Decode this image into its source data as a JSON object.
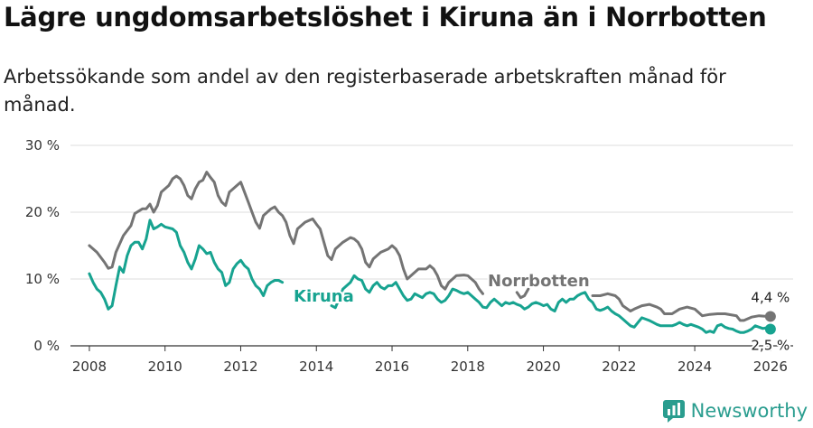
{
  "title": "Lägre ungdomsarbetslöshet i Kiruna än i Norrbotten",
  "subtitle": "Arbetssökande som andel av den registerbaserade arbetskraften månad för månad.",
  "brand": "Newsworthy",
  "colors": {
    "kiruna": "#17a390",
    "norrbotten": "#747474",
    "grid": "#dcdcdc",
    "axis": "#333333"
  },
  "chart_data": {
    "type": "line",
    "ylim": [
      0,
      30
    ],
    "xlim": [
      2007.5,
      2026.6
    ],
    "yticks": [
      0,
      10,
      20,
      30
    ],
    "ytick_labels": [
      "0 %",
      "10 %",
      "20 %",
      "30 %"
    ],
    "xticks": [
      2008,
      2010,
      2012,
      2014,
      2016,
      2018,
      2020,
      2022,
      2024,
      2026
    ],
    "xtick_labels": [
      "2008",
      "2010",
      "2012",
      "2014",
      "2016",
      "2018",
      "2020",
      "2022",
      "2024",
      "2026"
    ],
    "grid": true,
    "series": [
      {
        "name": "Norrbotten",
        "key": "norrbotten",
        "end_label": "4,4 %",
        "points": [
          [
            2008.0,
            15.0
          ],
          [
            2008.2,
            14.0
          ],
          [
            2008.4,
            12.5
          ],
          [
            2008.5,
            11.6
          ],
          [
            2008.6,
            11.8
          ],
          [
            2008.7,
            14.0
          ],
          [
            2008.9,
            16.5
          ],
          [
            2009.1,
            18.0
          ],
          [
            2009.2,
            19.8
          ],
          [
            2009.4,
            20.5
          ],
          [
            2009.5,
            20.5
          ],
          [
            2009.6,
            21.2
          ],
          [
            2009.7,
            20.0
          ],
          [
            2009.8,
            21.0
          ],
          [
            2009.9,
            23.0
          ],
          [
            2010.1,
            24.0
          ],
          [
            2010.2,
            25.0
          ],
          [
            2010.3,
            25.4
          ],
          [
            2010.4,
            25.0
          ],
          [
            2010.5,
            24.0
          ],
          [
            2010.6,
            22.5
          ],
          [
            2010.7,
            22.0
          ],
          [
            2010.8,
            23.5
          ],
          [
            2010.9,
            24.5
          ],
          [
            2011.0,
            24.8
          ],
          [
            2011.1,
            26.0
          ],
          [
            2011.2,
            25.2
          ],
          [
            2011.3,
            24.5
          ],
          [
            2011.4,
            22.5
          ],
          [
            2011.5,
            21.5
          ],
          [
            2011.6,
            21.0
          ],
          [
            2011.7,
            23.0
          ],
          [
            2011.9,
            24.0
          ],
          [
            2012.0,
            24.5
          ],
          [
            2012.1,
            23.0
          ],
          [
            2012.2,
            21.5
          ],
          [
            2012.3,
            20.0
          ],
          [
            2012.4,
            18.5
          ],
          [
            2012.5,
            17.6
          ],
          [
            2012.6,
            19.5
          ],
          [
            2012.8,
            20.5
          ],
          [
            2012.9,
            20.8
          ],
          [
            2013.0,
            20.0
          ],
          [
            2013.1,
            19.5
          ],
          [
            2013.2,
            18.5
          ],
          [
            2013.3,
            16.5
          ],
          [
            2013.4,
            15.3
          ],
          [
            2013.5,
            17.5
          ],
          [
            2013.7,
            18.5
          ],
          [
            2013.9,
            19.0
          ],
          [
            2014.0,
            18.2
          ],
          [
            2014.1,
            17.5
          ],
          [
            2014.2,
            15.5
          ],
          [
            2014.3,
            13.5
          ],
          [
            2014.4,
            12.9
          ],
          [
            2014.5,
            14.5
          ],
          [
            2014.7,
            15.5
          ],
          [
            2014.9,
            16.2
          ],
          [
            2015.0,
            16.0
          ],
          [
            2015.1,
            15.5
          ],
          [
            2015.2,
            14.5
          ],
          [
            2015.3,
            12.5
          ],
          [
            2015.4,
            11.8
          ],
          [
            2015.5,
            13.0
          ],
          [
            2015.7,
            14.0
          ],
          [
            2015.9,
            14.5
          ],
          [
            2016.0,
            15.0
          ],
          [
            2016.1,
            14.5
          ],
          [
            2016.2,
            13.5
          ],
          [
            2016.3,
            11.5
          ],
          [
            2016.4,
            10.0
          ],
          [
            2016.5,
            10.5
          ],
          [
            2016.7,
            11.5
          ],
          [
            2016.9,
            11.5
          ],
          [
            2017.0,
            12.0
          ],
          [
            2017.1,
            11.5
          ],
          [
            2017.2,
            10.5
          ],
          [
            2017.3,
            9.0
          ],
          [
            2017.4,
            8.5
          ],
          [
            2017.5,
            9.5
          ],
          [
            2017.7,
            10.5
          ],
          [
            2017.9,
            10.6
          ],
          [
            2018.0,
            10.5
          ],
          [
            2018.1,
            10.0
          ],
          [
            2018.2,
            9.5
          ],
          [
            2018.3,
            8.5
          ],
          [
            2018.4,
            7.8
          ]
        ],
        "points_after_label": [
          [
            2019.3,
            8.0
          ],
          [
            2019.4,
            7.2
          ],
          [
            2019.5,
            7.5
          ],
          [
            2019.6,
            8.5
          ]
        ],
        "points_tail": [
          [
            2021.3,
            7.5
          ],
          [
            2021.5,
            7.5
          ],
          [
            2021.7,
            7.8
          ],
          [
            2021.9,
            7.5
          ],
          [
            2022.0,
            7.0
          ],
          [
            2022.1,
            6.0
          ],
          [
            2022.3,
            5.2
          ],
          [
            2022.4,
            5.5
          ],
          [
            2022.6,
            6.0
          ],
          [
            2022.8,
            6.2
          ],
          [
            2023.0,
            5.8
          ],
          [
            2023.1,
            5.5
          ],
          [
            2023.2,
            4.8
          ],
          [
            2023.4,
            4.8
          ],
          [
            2023.6,
            5.5
          ],
          [
            2023.8,
            5.8
          ],
          [
            2024.0,
            5.5
          ],
          [
            2024.1,
            5.0
          ],
          [
            2024.2,
            4.5
          ],
          [
            2024.4,
            4.7
          ],
          [
            2024.6,
            4.8
          ],
          [
            2024.8,
            4.8
          ],
          [
            2025.0,
            4.6
          ],
          [
            2025.1,
            4.5
          ],
          [
            2025.2,
            3.8
          ],
          [
            2025.3,
            3.8
          ],
          [
            2025.5,
            4.3
          ],
          [
            2025.7,
            4.5
          ],
          [
            2025.9,
            4.4
          ],
          [
            2026.0,
            4.4
          ]
        ]
      },
      {
        "name": "Kiruna",
        "key": "kiruna",
        "end_label": "2,5 %",
        "points": [
          [
            2008.0,
            10.8
          ],
          [
            2008.1,
            9.5
          ],
          [
            2008.2,
            8.5
          ],
          [
            2008.3,
            8.0
          ],
          [
            2008.4,
            7.0
          ],
          [
            2008.5,
            5.5
          ],
          [
            2008.6,
            6.0
          ],
          [
            2008.7,
            9.0
          ],
          [
            2008.8,
            11.8
          ],
          [
            2008.9,
            11.0
          ],
          [
            2009.0,
            13.5
          ],
          [
            2009.1,
            15.0
          ],
          [
            2009.2,
            15.5
          ],
          [
            2009.3,
            15.5
          ],
          [
            2009.4,
            14.5
          ],
          [
            2009.5,
            16.0
          ],
          [
            2009.6,
            18.8
          ],
          [
            2009.7,
            17.5
          ],
          [
            2009.8,
            17.8
          ],
          [
            2009.9,
            18.2
          ],
          [
            2010.0,
            17.8
          ],
          [
            2010.2,
            17.5
          ],
          [
            2010.3,
            17.0
          ],
          [
            2010.4,
            15.0
          ],
          [
            2010.5,
            14.0
          ],
          [
            2010.6,
            12.5
          ],
          [
            2010.7,
            11.5
          ],
          [
            2010.8,
            13.0
          ],
          [
            2010.9,
            15.0
          ],
          [
            2011.0,
            14.5
          ],
          [
            2011.1,
            13.8
          ],
          [
            2011.2,
            14.0
          ],
          [
            2011.3,
            12.5
          ],
          [
            2011.4,
            11.5
          ],
          [
            2011.5,
            11.0
          ],
          [
            2011.6,
            9.0
          ],
          [
            2011.7,
            9.5
          ],
          [
            2011.8,
            11.5
          ],
          [
            2011.9,
            12.3
          ],
          [
            2012.0,
            12.8
          ],
          [
            2012.1,
            12.0
          ],
          [
            2012.2,
            11.5
          ],
          [
            2012.3,
            10.0
          ],
          [
            2012.4,
            9.0
          ],
          [
            2012.5,
            8.5
          ],
          [
            2012.6,
            7.5
          ],
          [
            2012.7,
            9.0
          ],
          [
            2012.8,
            9.5
          ],
          [
            2012.9,
            9.8
          ],
          [
            2013.0,
            9.8
          ],
          [
            2013.1,
            9.5
          ]
        ],
        "points_after_label": [
          [
            2014.4,
            6.0
          ],
          [
            2014.5,
            5.7
          ],
          [
            2014.6,
            7.0
          ],
          [
            2014.7,
            8.5
          ],
          [
            2014.8,
            9.0
          ],
          [
            2014.9,
            9.5
          ],
          [
            2015.0,
            10.5
          ],
          [
            2015.1,
            10.0
          ],
          [
            2015.2,
            9.8
          ],
          [
            2015.3,
            8.5
          ],
          [
            2015.4,
            8.0
          ],
          [
            2015.5,
            9.0
          ],
          [
            2015.6,
            9.5
          ],
          [
            2015.7,
            8.8
          ],
          [
            2015.8,
            8.5
          ],
          [
            2015.9,
            9.0
          ],
          [
            2016.0,
            9.0
          ],
          [
            2016.1,
            9.5
          ],
          [
            2016.2,
            8.5
          ],
          [
            2016.3,
            7.5
          ],
          [
            2016.4,
            6.8
          ],
          [
            2016.5,
            7.0
          ],
          [
            2016.6,
            7.8
          ],
          [
            2016.7,
            7.5
          ],
          [
            2016.8,
            7.2
          ],
          [
            2016.9,
            7.8
          ],
          [
            2017.0,
            8.0
          ],
          [
            2017.1,
            7.8
          ],
          [
            2017.2,
            7.0
          ],
          [
            2017.3,
            6.5
          ],
          [
            2017.4,
            6.8
          ],
          [
            2017.5,
            7.5
          ],
          [
            2017.6,
            8.5
          ],
          [
            2017.7,
            8.3
          ],
          [
            2017.8,
            8.0
          ],
          [
            2017.9,
            7.8
          ],
          [
            2018.0,
            8.0
          ],
          [
            2018.1,
            7.5
          ],
          [
            2018.2,
            7.0
          ],
          [
            2018.3,
            6.5
          ],
          [
            2018.4,
            5.8
          ],
          [
            2018.5,
            5.7
          ],
          [
            2018.6,
            6.5
          ],
          [
            2018.7,
            7.0
          ],
          [
            2018.8,
            6.5
          ],
          [
            2018.9,
            6.0
          ],
          [
            2019.0,
            6.5
          ],
          [
            2019.1,
            6.3
          ],
          [
            2019.2,
            6.5
          ],
          [
            2019.3,
            6.2
          ],
          [
            2019.4,
            6.0
          ],
          [
            2019.5,
            5.5
          ],
          [
            2019.6,
            5.8
          ],
          [
            2019.7,
            6.3
          ],
          [
            2019.8,
            6.5
          ],
          [
            2019.9,
            6.3
          ],
          [
            2020.0,
            6.0
          ],
          [
            2020.1,
            6.2
          ],
          [
            2020.2,
            5.5
          ],
          [
            2020.3,
            5.2
          ],
          [
            2020.4,
            6.5
          ],
          [
            2020.5,
            7.0
          ],
          [
            2020.6,
            6.5
          ],
          [
            2020.7,
            7.0
          ],
          [
            2020.8,
            7.0
          ],
          [
            2020.9,
            7.5
          ],
          [
            2021.0,
            7.8
          ],
          [
            2021.1,
            8.0
          ],
          [
            2021.2,
            7.0
          ],
          [
            2021.3,
            6.5
          ],
          [
            2021.4,
            5.5
          ],
          [
            2021.5,
            5.3
          ],
          [
            2021.6,
            5.5
          ],
          [
            2021.7,
            5.8
          ],
          [
            2021.8,
            5.2
          ],
          [
            2021.9,
            4.8
          ],
          [
            2022.0,
            4.5
          ],
          [
            2022.1,
            4.0
          ],
          [
            2022.2,
            3.5
          ],
          [
            2022.3,
            3.0
          ],
          [
            2022.4,
            2.8
          ],
          [
            2022.5,
            3.5
          ],
          [
            2022.6,
            4.2
          ],
          [
            2022.7,
            4.0
          ],
          [
            2022.8,
            3.8
          ],
          [
            2022.9,
            3.5
          ],
          [
            2023.0,
            3.2
          ],
          [
            2023.1,
            3.0
          ],
          [
            2023.2,
            3.0
          ],
          [
            2023.3,
            3.0
          ],
          [
            2023.4,
            3.0
          ],
          [
            2023.5,
            3.2
          ],
          [
            2023.6,
            3.5
          ],
          [
            2023.7,
            3.2
          ],
          [
            2023.8,
            3.0
          ],
          [
            2023.9,
            3.2
          ],
          [
            2024.0,
            3.0
          ],
          [
            2024.1,
            2.8
          ],
          [
            2024.2,
            2.5
          ],
          [
            2024.3,
            2.0
          ],
          [
            2024.4,
            2.2
          ],
          [
            2024.5,
            2.0
          ],
          [
            2024.6,
            3.0
          ],
          [
            2024.7,
            3.2
          ],
          [
            2024.8,
            2.8
          ],
          [
            2024.9,
            2.6
          ],
          [
            2025.0,
            2.5
          ],
          [
            2025.1,
            2.2
          ],
          [
            2025.2,
            2.0
          ],
          [
            2025.3,
            2.0
          ],
          [
            2025.4,
            2.2
          ],
          [
            2025.5,
            2.5
          ],
          [
            2025.6,
            3.0
          ],
          [
            2025.7,
            2.8
          ],
          [
            2025.8,
            2.6
          ],
          [
            2025.9,
            2.7
          ],
          [
            2026.0,
            2.5
          ]
        ]
      }
    ]
  }
}
